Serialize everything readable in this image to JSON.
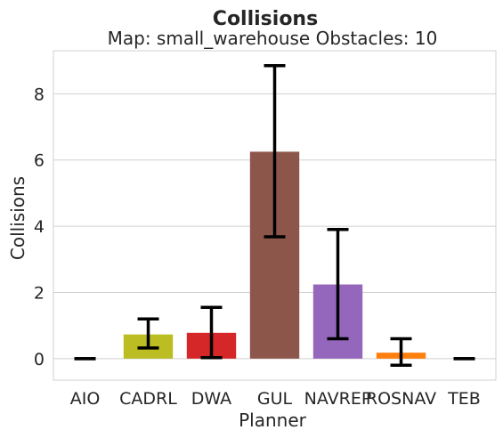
{
  "chart_data": {
    "type": "bar",
    "title": "Collisions",
    "subtitle": "Map: small_warehouse Obstacles: 10",
    "xlabel": "Planner",
    "ylabel": "Collisions",
    "categories": [
      "AIO",
      "CADRL",
      "DWA",
      "GUL",
      "NAVREP",
      "ROSNAV",
      "TEB"
    ],
    "values": [
      0.0,
      0.73,
      0.78,
      6.25,
      2.24,
      0.18,
      0.0
    ],
    "error_low": [
      0.0,
      0.32,
      0.03,
      3.68,
      0.6,
      -0.2,
      0.0
    ],
    "error_high": [
      0.0,
      1.2,
      1.55,
      8.85,
      3.9,
      0.6,
      0.0
    ],
    "colors": [
      "#1f77b4",
      "#bcbd22",
      "#d62728",
      "#8c564b",
      "#9467bd",
      "#ff7f0e",
      "#17becf"
    ],
    "yticks": [
      0,
      2,
      4,
      6,
      8
    ],
    "ylim": [
      -0.65,
      9.3
    ],
    "grid": true
  }
}
